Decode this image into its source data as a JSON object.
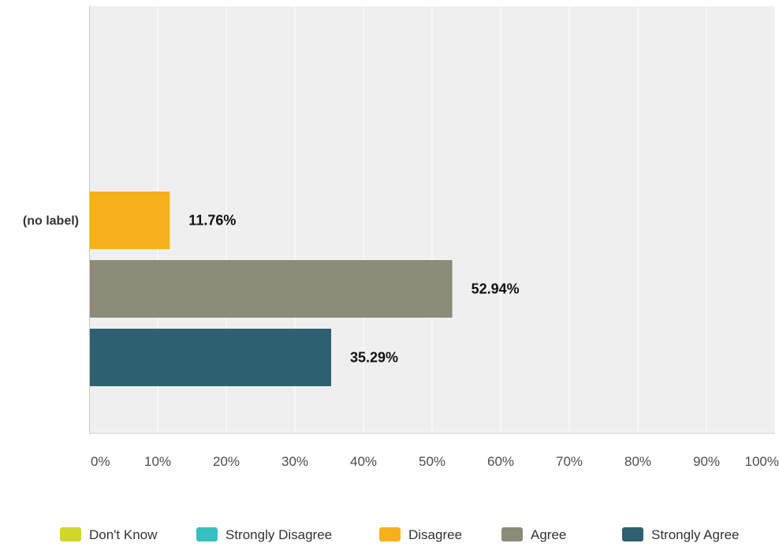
{
  "chart_data": {
    "type": "bar",
    "orientation": "horizontal",
    "categories": [
      "(no label)"
    ],
    "series": [
      {
        "name": "Don't Know",
        "color": "#d0d72a",
        "values": [
          0
        ]
      },
      {
        "name": "Strongly Disagree",
        "color": "#37bfbf",
        "values": [
          0
        ]
      },
      {
        "name": "Disagree",
        "color": "#f7af1c",
        "values": [
          11.76
        ]
      },
      {
        "name": "Agree",
        "color": "#8a8b79",
        "values": [
          52.94
        ]
      },
      {
        "name": "Strongly Agree",
        "color": "#2e6170",
        "values": [
          35.29
        ]
      }
    ],
    "data_labels": [
      "11.76%",
      "52.94%",
      "35.29%"
    ],
    "xlim": [
      0,
      100
    ],
    "xticks": [
      0,
      10,
      20,
      30,
      40,
      50,
      60,
      70,
      80,
      90,
      100
    ],
    "xtick_labels": [
      "0%",
      "10%",
      "20%",
      "30%",
      "40%",
      "50%",
      "60%",
      "70%",
      "80%",
      "90%",
      "100%"
    ],
    "grid": true,
    "legend_position": "bottom",
    "plot_background": "#efefef",
    "title": "",
    "xlabel": "",
    "ylabel": ""
  }
}
